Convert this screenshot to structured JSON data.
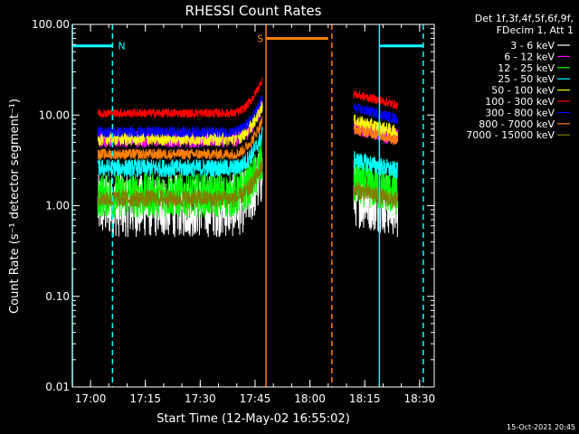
{
  "chart_data": {
    "type": "line",
    "title": "RHESSI Count Rates",
    "xlabel": "Start Time (12-May-02 16:55:02)",
    "ylabel": "Count Rate (s⁻¹ detector segment⁻¹)",
    "yscale": "log",
    "ylim": [
      0.01,
      100
    ],
    "xlim": [
      "16:55:02",
      "18:34:00"
    ],
    "y_ticks": [
      "0.01",
      "0.10",
      "1.00",
      "10.00",
      "100.00"
    ],
    "x_ticks": [
      "17:00",
      "17:15",
      "17:30",
      "17:45",
      "18:00",
      "18:15",
      "18:30"
    ],
    "legend_header": [
      "Det 1f,3f,4f,5f,6f,9f,",
      "FDecim 1, Att 1"
    ],
    "legend_position": "top-right, outside plot",
    "timestamp": "15-Oct-2021 20:45",
    "series": [
      {
        "name": "3 - 6 keV",
        "color": "#ffffff",
        "level_1": 1.0,
        "level_2": 1.3,
        "noise": 0.35
      },
      {
        "name": "6 - 12 keV",
        "color": "#ff00ff",
        "level_1": 5.5,
        "level_2": 7.5,
        "noise": 0.1
      },
      {
        "name": "12 - 25 keV",
        "color": "#00ff00",
        "level_1": 1.3,
        "level_2": 1.8,
        "noise": 0.25
      },
      {
        "name": "25 - 50 keV",
        "color": "#00ffff",
        "level_1": 2.6,
        "level_2": 3.2,
        "noise": 0.1
      },
      {
        "name": "50 - 100 keV",
        "color": "#ffff00",
        "level_1": 5.5,
        "level_2": 8.5,
        "noise": 0.08
      },
      {
        "name": "100 - 300 keV",
        "color": "#ff0000",
        "level_1": 10.5,
        "level_2": 17.0,
        "noise": 0.05
      },
      {
        "name": "300 - 800 keV",
        "color": "#0000ff",
        "level_1": 6.5,
        "level_2": 12.0,
        "noise": 0.06
      },
      {
        "name": "800 - 7000 keV",
        "color": "#ff8000",
        "level_1": 3.7,
        "level_2": 7.0,
        "noise": 0.06
      },
      {
        "name": "7000 - 15000 keV",
        "color": "#808000",
        "level_1": 1.2,
        "level_2": 1.5,
        "noise": 0.1
      }
    ],
    "data_intervals": [
      {
        "start": "17:02:00",
        "end": "17:47:00",
        "rise_to": 25
      },
      {
        "start": "18:12:00",
        "end": "18:24:00",
        "rise_to": null
      }
    ],
    "flags": [
      {
        "label": "N",
        "color": "#00ffff",
        "y": 58,
        "solid_intervals": [
          [
            "16:55:02",
            "17:06:00"
          ],
          [
            "18:19:00",
            "18:31:00"
          ]
        ],
        "dashed_lines": [
          "17:06:00",
          "18:31:00"
        ],
        "solid_lines": [
          "16:55:02",
          "18:19:00"
        ]
      },
      {
        "label": "S",
        "color": "#ff8000",
        "y": 70,
        "solid_intervals": [
          [
            "17:48:00",
            "18:05:00"
          ]
        ],
        "dashed_lines": [
          "18:06:00"
        ],
        "solid_lines": [
          "17:48:00"
        ]
      }
    ]
  }
}
